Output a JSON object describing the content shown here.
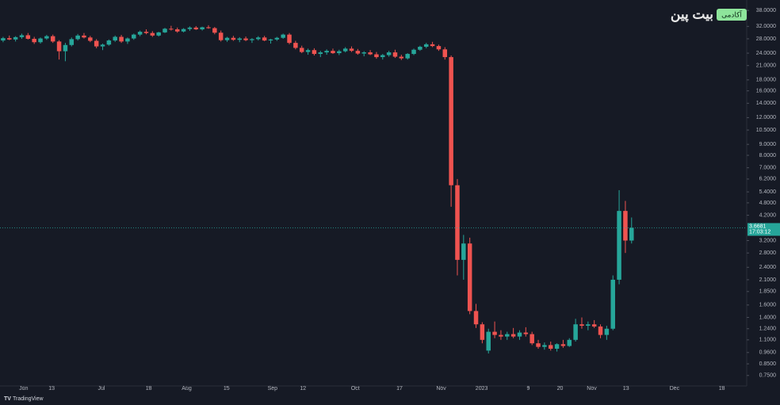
{
  "chart_data": {
    "type": "candlestick",
    "log_scale": true,
    "grid": false,
    "up_color": "#26a69a",
    "down_color": "#ef5350",
    "open": [
      27.5,
      28.2,
      27.8,
      28.5,
      29.1,
      28,
      27,
      28.1,
      28.8,
      27.2,
      24.5,
      26.2,
      27.9,
      29,
      28.4,
      27.4,
      25.8,
      26.3,
      27.5,
      28.6,
      27.2,
      28.1,
      29.3,
      30.2,
      29.8,
      29,
      30,
      31.2,
      31,
      30.3,
      31.1,
      31.6,
      31,
      31.7,
      31.4,
      29.9,
      27.6,
      28.3,
      27.7,
      28.1,
      27.6,
      27.9,
      28.4,
      27.5,
      27.8,
      28.3,
      29.3,
      26.8,
      25.4,
      24.3,
      24.8,
      23.8,
      24.2,
      24.6,
      24,
      24.5,
      25.2,
      24.6,
      23.9,
      24.2,
      23.7,
      23,
      23.5,
      24.2,
      23.1,
      22.7,
      23.8,
      24.9,
      25.7,
      26.4,
      25.9,
      25,
      23,
      5.8,
      2.6,
      3.1,
      1.5,
      1.3,
      0.98,
      1.2,
      1.16,
      1.14,
      1.17,
      1.14,
      1.19,
      1.17,
      1.06,
      1.02,
      1.04,
      1.0,
      1.05,
      1.03,
      1.1,
      1.3,
      1.28,
      1.3,
      1.27,
      1.16,
      1.24,
      2.1,
      4.4,
      3.2
    ],
    "high": [
      28.6,
      29,
      28.8,
      29.6,
      29.8,
      28.6,
      28.4,
      29.2,
      29.3,
      27.6,
      26.8,
      28.4,
      29.5,
      29.8,
      28.9,
      27.9,
      26.6,
      27.8,
      29,
      29.2,
      28.4,
      29.6,
      30.6,
      31,
      30.4,
      30.2,
      31.5,
      32.2,
      31.6,
      31.4,
      32,
      32.1,
      31.9,
      32.4,
      31.8,
      30.6,
      28.6,
      28.9,
      28.5,
      28.7,
      28.2,
      28.8,
      28.9,
      28,
      28.6,
      29.6,
      29.8,
      27.4,
      26,
      25.2,
      25.3,
      24.6,
      25,
      25.2,
      24.9,
      25.6,
      25.8,
      25.1,
      24.5,
      24.8,
      24.3,
      23.8,
      24.6,
      24.9,
      23.6,
      24,
      25.2,
      26,
      26.8,
      27.1,
      26.3,
      25.6,
      23.4,
      6.2,
      3.4,
      3.3,
      1.62,
      1.33,
      1.24,
      1.34,
      1.22,
      1.2,
      1.25,
      1.22,
      1.26,
      1.2,
      1.1,
      1.07,
      1.08,
      1.06,
      1.1,
      1.12,
      1.38,
      1.4,
      1.34,
      1.36,
      1.3,
      1.28,
      2.2,
      5.5,
      4.9,
      4.1
    ],
    "low": [
      27,
      27.6,
      27.2,
      28,
      27.8,
      26.5,
      26.6,
      27.7,
      26.8,
      22.4,
      22,
      25.8,
      27.5,
      28.1,
      27,
      25.3,
      24.8,
      26,
      27.1,
      26.8,
      26.5,
      27.7,
      28.8,
      29.4,
      28.6,
      28.7,
      29.8,
      30.6,
      29.9,
      30,
      30.5,
      30.8,
      30.6,
      31.2,
      29.4,
      27.2,
      27.1,
      27.4,
      27,
      27.3,
      26.8,
      27.5,
      27.3,
      26.6,
      27.4,
      28,
      26.4,
      25,
      24,
      23.6,
      23.4,
      23,
      23.6,
      23.8,
      23.5,
      24.2,
      24.3,
      23.6,
      23.2,
      23.5,
      22.6,
      22.4,
      23.1,
      22.8,
      22.3,
      22.4,
      23.5,
      24.6,
      25.3,
      25.6,
      24.6,
      22.4,
      4.6,
      2.2,
      2.1,
      1.45,
      1.25,
      1.06,
      0.95,
      1.12,
      1.1,
      1.1,
      1.12,
      1.1,
      1.14,
      1.04,
      1.0,
      0.99,
      0.98,
      0.97,
      1.01,
      1.02,
      1.08,
      1.24,
      1.22,
      1.25,
      1.12,
      1.1,
      1.22,
      2.0,
      2.8,
      3.1
    ],
    "close": [
      28.2,
      27.8,
      28.5,
      29.1,
      28,
      27,
      28.1,
      28.8,
      27.2,
      24.5,
      26.2,
      27.9,
      29,
      28.4,
      27.4,
      25.8,
      26.3,
      27.5,
      28.6,
      27.2,
      28.1,
      29.3,
      30.2,
      29.8,
      29,
      30,
      31.2,
      31,
      30.3,
      31.1,
      31.6,
      31,
      31.7,
      31.4,
      29.9,
      27.6,
      28.3,
      27.7,
      28.1,
      27.6,
      27.9,
      28.4,
      27.5,
      27.8,
      28.3,
      29.3,
      26.8,
      25.4,
      24.3,
      24.8,
      23.8,
      24.2,
      24.6,
      24,
      24.5,
      25.2,
      24.6,
      23.9,
      24.2,
      23.7,
      23,
      23.5,
      24.2,
      23.1,
      22.7,
      23.8,
      24.9,
      25.7,
      26.4,
      25.9,
      25,
      23,
      5.8,
      2.6,
      3.1,
      1.5,
      1.3,
      1.1,
      1.2,
      1.16,
      1.14,
      1.17,
      1.14,
      1.19,
      1.17,
      1.06,
      1.02,
      1.04,
      1.0,
      1.05,
      1.03,
      1.1,
      1.3,
      1.28,
      1.3,
      1.27,
      1.16,
      1.24,
      2.1,
      4.4,
      3.2,
      3.6681
    ],
    "xlim": [
      0,
      120
    ],
    "xticks": [
      {
        "value": 3.8,
        "label": "Jun"
      },
      {
        "value": 8.3,
        "label": "13"
      },
      {
        "value": 16.3,
        "label": "Jul"
      },
      {
        "value": 23.9,
        "label": "18"
      },
      {
        "value": 30,
        "label": "Aug"
      },
      {
        "value": 36.4,
        "label": "15"
      },
      {
        "value": 43.8,
        "label": "Sep"
      },
      {
        "value": 48.7,
        "label": "12"
      },
      {
        "value": 57.1,
        "label": "Oct"
      },
      {
        "value": 64.2,
        "label": "17"
      },
      {
        "value": 70.9,
        "label": "Nov"
      },
      {
        "value": 77.4,
        "label": "2023"
      },
      {
        "value": 84.9,
        "label": "9"
      },
      {
        "value": 90,
        "label": "20"
      },
      {
        "value": 95.1,
        "label": "Nov"
      },
      {
        "value": 100.6,
        "label": "13"
      },
      {
        "value": 108.4,
        "label": "Dec"
      },
      {
        "value": 116,
        "label": "18"
      }
    ],
    "ylim": [
      0.67,
      42.5
    ],
    "yticks": [
      {
        "value": 38,
        "label": "38.0000"
      },
      {
        "value": 32,
        "label": "32.0000"
      },
      {
        "value": 28,
        "label": "28.0000"
      },
      {
        "value": 24,
        "label": "24.0000"
      },
      {
        "value": 21,
        "label": "21.0000"
      },
      {
        "value": 18,
        "label": "18.0000"
      },
      {
        "value": 16,
        "label": "16.0000"
      },
      {
        "value": 14,
        "label": "14.0000"
      },
      {
        "value": 12,
        "label": "12.0000"
      },
      {
        "value": 10.5,
        "label": "10.5000"
      },
      {
        "value": 9,
        "label": "9.0000"
      },
      {
        "value": 8,
        "label": "8.0000"
      },
      {
        "value": 7,
        "label": "7.0000"
      },
      {
        "value": 6.2,
        "label": "6.2000"
      },
      {
        "value": 5.4,
        "label": "5.4000"
      },
      {
        "value": 4.8,
        "label": "4.8000"
      },
      {
        "value": 4.2,
        "label": "4.2000"
      },
      {
        "value": 3.2,
        "label": "3.2000"
      },
      {
        "value": 2.8,
        "label": "2.8000"
      },
      {
        "value": 2.4,
        "label": "2.4000"
      },
      {
        "value": 2.1,
        "label": "2.1000"
      },
      {
        "value": 1.85,
        "label": "1.8500"
      },
      {
        "value": 1.6,
        "label": "1.6000"
      },
      {
        "value": 1.4,
        "label": "1.4000"
      },
      {
        "value": 1.24,
        "label": "1.2400"
      },
      {
        "value": 1.1,
        "label": "1.1000"
      },
      {
        "value": 0.96,
        "label": "0.9600"
      },
      {
        "value": 0.85,
        "label": "0.8500"
      },
      {
        "value": 0.75,
        "label": "0.7500"
      }
    ],
    "last_price": {
      "value": 3.6681,
      "label": "3.6681"
    },
    "countdown": "17:03:12",
    "watermark": {
      "brand": "بیت پین",
      "badge": "آکادمی"
    },
    "logo": "TradingView"
  }
}
